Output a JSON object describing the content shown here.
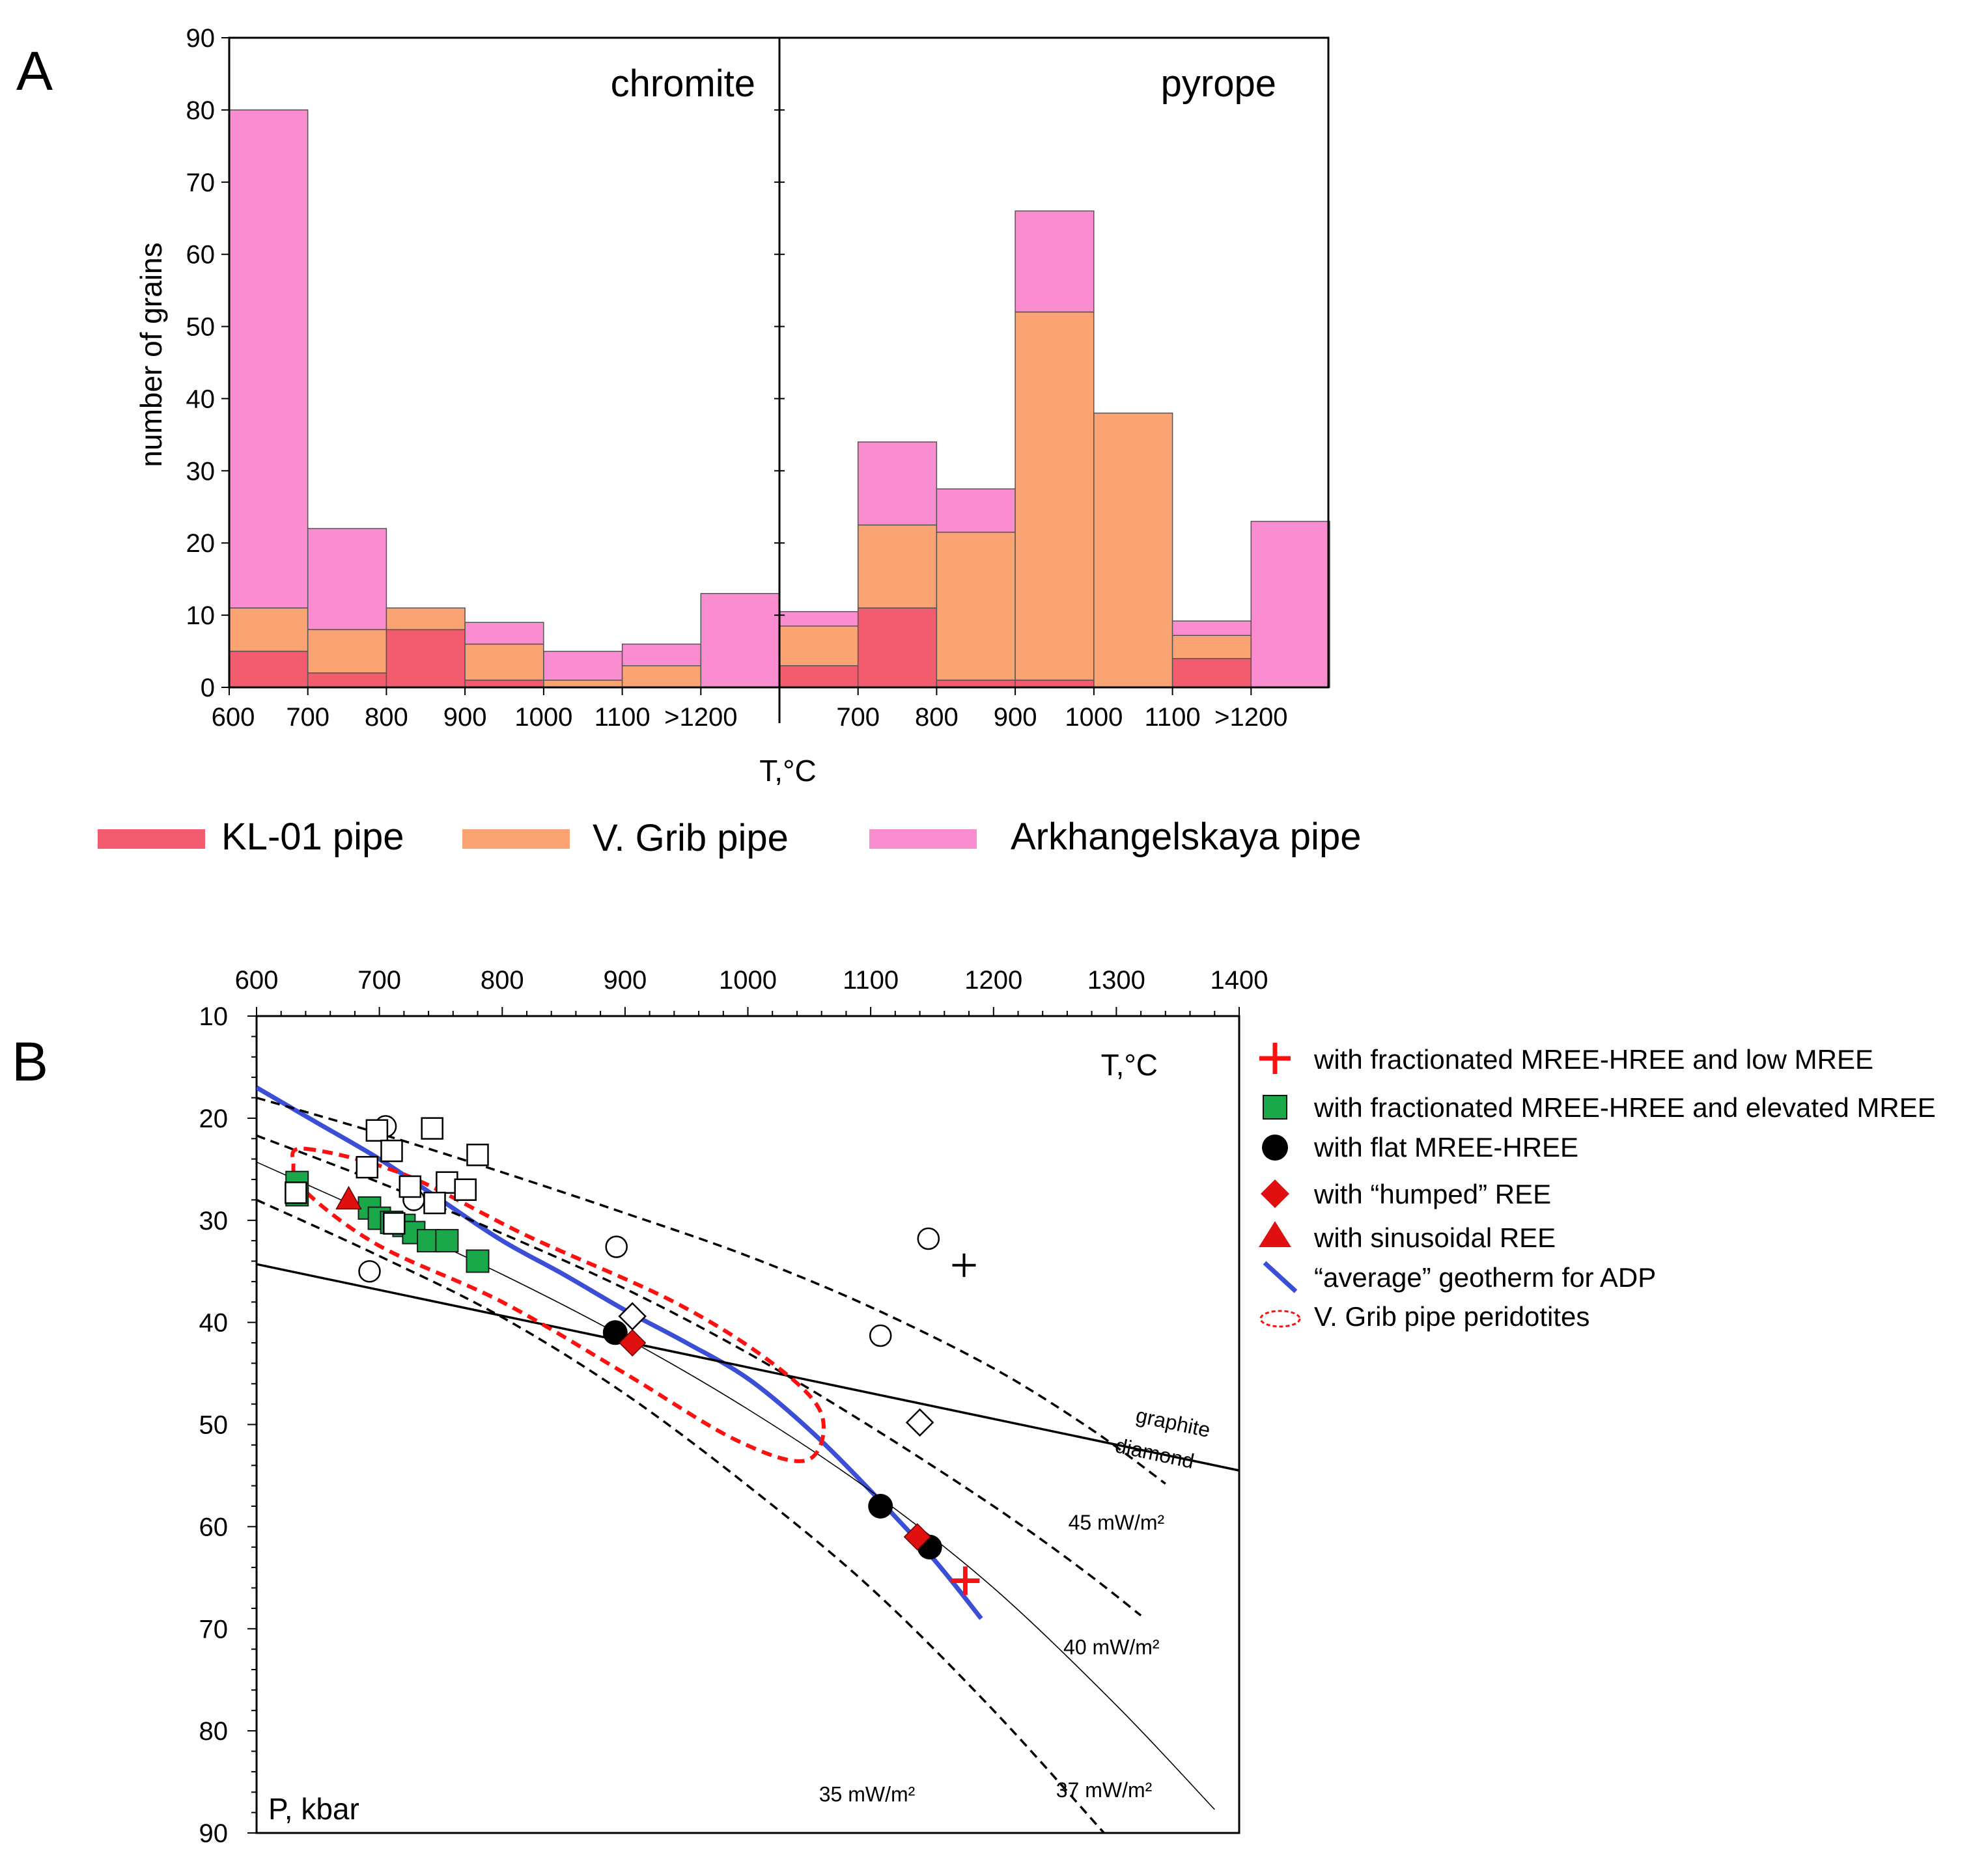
{
  "chart_data": [
    {
      "id": "A",
      "type": "bar",
      "stacked": true,
      "panel_label": "A",
      "ylabel": "number of grains",
      "xlabel": "T,°C",
      "ylim": [
        0,
        90
      ],
      "yticks": [
        "0",
        "10",
        "20",
        "30",
        "40",
        "50",
        "60",
        "70",
        "80",
        "90"
      ],
      "series_names": [
        "KL-01 pipe",
        "V. Grib pipe",
        "Arkhangelskaya pipe"
      ],
      "colors": [
        "#f25c6e",
        "#f9a472",
        "#f98dcf"
      ],
      "subplots": [
        {
          "title": "chromite",
          "categories": [
            "600",
            "700",
            "800",
            "900",
            "1000",
            "1100",
            ">1200"
          ],
          "tick_labels": [
            "600",
            "700",
            "800",
            "900",
            "1000",
            "1100",
            ">1200"
          ],
          "series": [
            {
              "name": "KL-01 pipe",
              "values": [
                5,
                2,
                8,
                1,
                0,
                0,
                0
              ]
            },
            {
              "name": "V. Grib pipe",
              "values": [
                6,
                6,
                3,
                5,
                1,
                3,
                0
              ]
            },
            {
              "name": "Arkhangelskaya pipe",
              "values": [
                69,
                14,
                0,
                3,
                4,
                3,
                13
              ]
            }
          ]
        },
        {
          "title": "pyrope",
          "categories": [
            "600",
            "700",
            "800",
            "900",
            "1000",
            "1100",
            ">1200"
          ],
          "tick_labels": [
            "",
            "700",
            "800",
            "900",
            "1000",
            "1100",
            ">1200"
          ],
          "series": [
            {
              "name": "KL-01 pipe",
              "values": [
                3,
                11,
                1,
                1,
                0,
                4,
                0
              ]
            },
            {
              "name": "V. Grib pipe",
              "values": [
                5.5,
                11.5,
                20.5,
                51,
                38,
                3.2,
                0
              ]
            },
            {
              "name": "Arkhangelskaya pipe",
              "values": [
                2,
                11.5,
                6,
                14,
                0,
                2,
                23
              ]
            }
          ]
        }
      ]
    },
    {
      "id": "B",
      "type": "scatter",
      "panel_label": "B",
      "xlabel": "T,°C",
      "ylabel": "P, kbar",
      "xlim": [
        600,
        1400
      ],
      "ylim": [
        10,
        90
      ],
      "y_inverted": true,
      "x_axis_position": "top",
      "xticks": [
        600,
        700,
        800,
        900,
        1000,
        1100,
        1200,
        1300,
        1400
      ],
      "yticks": [
        10,
        20,
        30,
        40,
        50,
        60,
        70,
        80,
        90
      ],
      "legend": [
        {
          "symbol": "red-plus",
          "label": "with fractionated MREE-HREE and low MREE"
        },
        {
          "symbol": "green-square",
          "label": "with fractionated MREE-HREE and elevated MREE"
        },
        {
          "symbol": "black-circle",
          "label": "with flat MREE-HREE"
        },
        {
          "symbol": "red-diamond",
          "label": "with “humped” REE"
        },
        {
          "symbol": "red-triangle",
          "label": "with sinusoidal REE"
        },
        {
          "symbol": "blue-line",
          "label": "“average” geotherm for ADP"
        },
        {
          "symbol": "red-dashed-ellipse",
          "label": "V. Grib pipe peridotites"
        }
      ],
      "series": [
        {
          "name": "fractionated MREE-HREE and low MREE",
          "marker": "plus",
          "color": "#ff1010",
          "points": [
            [
              1177,
              65.3
            ]
          ]
        },
        {
          "name": "fractionated MREE-HREE and elevated MREE",
          "marker": "square",
          "color": "#1aa84a",
          "points": [
            [
              633,
              26.3
            ],
            [
              633,
              27.5
            ],
            [
              692,
              28.8
            ],
            [
              700,
              29.8
            ],
            [
              710,
              30.2
            ],
            [
              720,
              30.5
            ],
            [
              728,
              31.2
            ],
            [
              740,
              32
            ],
            [
              755,
              32
            ],
            [
              780,
              34
            ]
          ]
        },
        {
          "name": "flat MREE-HREE",
          "marker": "circle",
          "color": "#000000",
          "points": [
            [
              892,
              41
            ],
            [
              1108,
              58
            ],
            [
              1148,
              62
            ]
          ]
        },
        {
          "name": "humped REE",
          "marker": "diamond",
          "color": "#e01010",
          "points": [
            [
              906,
              42
            ],
            [
              1138,
              61
            ]
          ]
        },
        {
          "name": "sinusoidal REE",
          "marker": "triangle",
          "color": "#e01010",
          "points": [
            [
              675,
              28
            ]
          ]
        },
        {
          "name": "unclassified open circles",
          "marker": "open-circle",
          "color": "#000000",
          "points": [
            [
              705,
              20.8
            ],
            [
              728,
              28
            ],
            [
              692,
              35
            ],
            [
              893,
              32.6
            ],
            [
              1108,
              41.3
            ],
            [
              1147,
              31.8
            ]
          ]
        },
        {
          "name": "unclassified open squares",
          "marker": "open-square",
          "color": "#000000",
          "points": [
            [
              698,
              21.2
            ],
            [
              710,
              23.2
            ],
            [
              743,
              21
            ],
            [
              780,
              23.6
            ],
            [
              690,
              24.8
            ],
            [
              725,
              26.7
            ],
            [
              755,
              26.3
            ],
            [
              770,
              27
            ],
            [
              632,
              27.3
            ],
            [
              712,
              30.3
            ],
            [
              745,
              28.3
            ]
          ]
        },
        {
          "name": "unclassified open diamonds",
          "marker": "open-diamond",
          "color": "#000000",
          "points": [
            [
              906,
              39.4
            ],
            [
              1140,
              49.8
            ]
          ]
        },
        {
          "name": "unclassified cross",
          "marker": "plus",
          "color": "#000000",
          "points": [
            [
              1176,
              34.4
            ]
          ]
        }
      ],
      "lines": [
        {
          "name": "graphite-diamond",
          "style": "solid",
          "color": "#000000",
          "points": [
            [
              600,
              34.3
            ],
            [
              1400,
              54.5
            ]
          ]
        },
        {
          "name": "average geotherm for ADP",
          "style": "solid",
          "color": "#3b4fd6",
          "points": [
            [
              600,
              17
            ],
            [
              650,
              20.5
            ],
            [
              700,
              24
            ],
            [
              750,
              28
            ],
            [
              800,
              32
            ],
            [
              850,
              35.3
            ],
            [
              900,
              38.8
            ],
            [
              950,
              42
            ],
            [
              1000,
              45.5
            ],
            [
              1050,
              50.5
            ],
            [
              1100,
              56.5
            ],
            [
              1150,
              63
            ],
            [
              1190,
              69
            ]
          ]
        },
        {
          "name": "45 mW/m2",
          "style": "dashed",
          "color": "#000000",
          "points": [
            [
              600,
              18
            ],
            [
              700,
              21.5
            ],
            [
              800,
              25.3
            ],
            [
              900,
              29.3
            ],
            [
              1000,
              33.5
            ],
            [
              1100,
              38.5
            ],
            [
              1200,
              44.5
            ],
            [
              1280,
              50.5
            ],
            [
              1340,
              55.8
            ]
          ]
        },
        {
          "name": "40 mW/m2",
          "style": "dashed",
          "color": "#000000",
          "points": [
            [
              600,
              21.7
            ],
            [
              700,
              26.3
            ],
            [
              800,
              31.3
            ],
            [
              900,
              36.7
            ],
            [
              1000,
              43
            ],
            [
              1100,
              50.2
            ],
            [
              1200,
              58
            ],
            [
              1270,
              64
            ],
            [
              1320,
              68.7
            ]
          ]
        },
        {
          "name": "37 mW/m2",
          "style": "thin",
          "color": "#000000",
          "points": [
            [
              600,
              24.3
            ],
            [
              700,
              29.7
            ],
            [
              800,
              35.3
            ],
            [
              900,
              41.5
            ],
            [
              1000,
              48.5
            ],
            [
              1100,
              56.5
            ],
            [
              1200,
              66
            ],
            [
              1300,
              77.5
            ],
            [
              1380,
              87.7
            ]
          ]
        },
        {
          "name": "35 mW/m2",
          "style": "dashed",
          "color": "#000000",
          "points": [
            [
              600,
              28
            ],
            [
              700,
              33.5
            ],
            [
              800,
              39.5
            ],
            [
              900,
              47
            ],
            [
              1000,
              56
            ],
            [
              1100,
              66
            ],
            [
              1200,
              78
            ],
            [
              1290,
              90
            ]
          ]
        }
      ],
      "ellipse_outline": {
        "name": "V. Grib pipe peridotites",
        "style": "dashed",
        "color": "#ff1010",
        "points": [
          [
            640,
            23
          ],
          [
            720,
            25.5
          ],
          [
            820,
            31.5
          ],
          [
            940,
            38
          ],
          [
            1020,
            44
          ],
          [
            1060,
            49
          ],
          [
            1048,
            53.5
          ],
          [
            990,
            51.5
          ],
          [
            900,
            45
          ],
          [
            800,
            38
          ],
          [
            700,
            32.5
          ],
          [
            640,
            27.2
          ],
          [
            630,
            24.5
          ]
        ]
      },
      "annotations": [
        {
          "text": "graphite",
          "at": [
            1345,
            50.5
          ],
          "rotation": 12
        },
        {
          "text": "diamond",
          "at": [
            1330,
            53.5
          ],
          "rotation": 12
        },
        {
          "text": "45 mW/m²",
          "at": [
            1300,
            60.3
          ]
        },
        {
          "text": "40 mW/m²",
          "at": [
            1296,
            72.5
          ]
        },
        {
          "text": "37 mW/m²",
          "at": [
            1290,
            86.5
          ]
        },
        {
          "text": "35 mW/m²",
          "at": [
            1097,
            86.9
          ]
        }
      ]
    }
  ]
}
